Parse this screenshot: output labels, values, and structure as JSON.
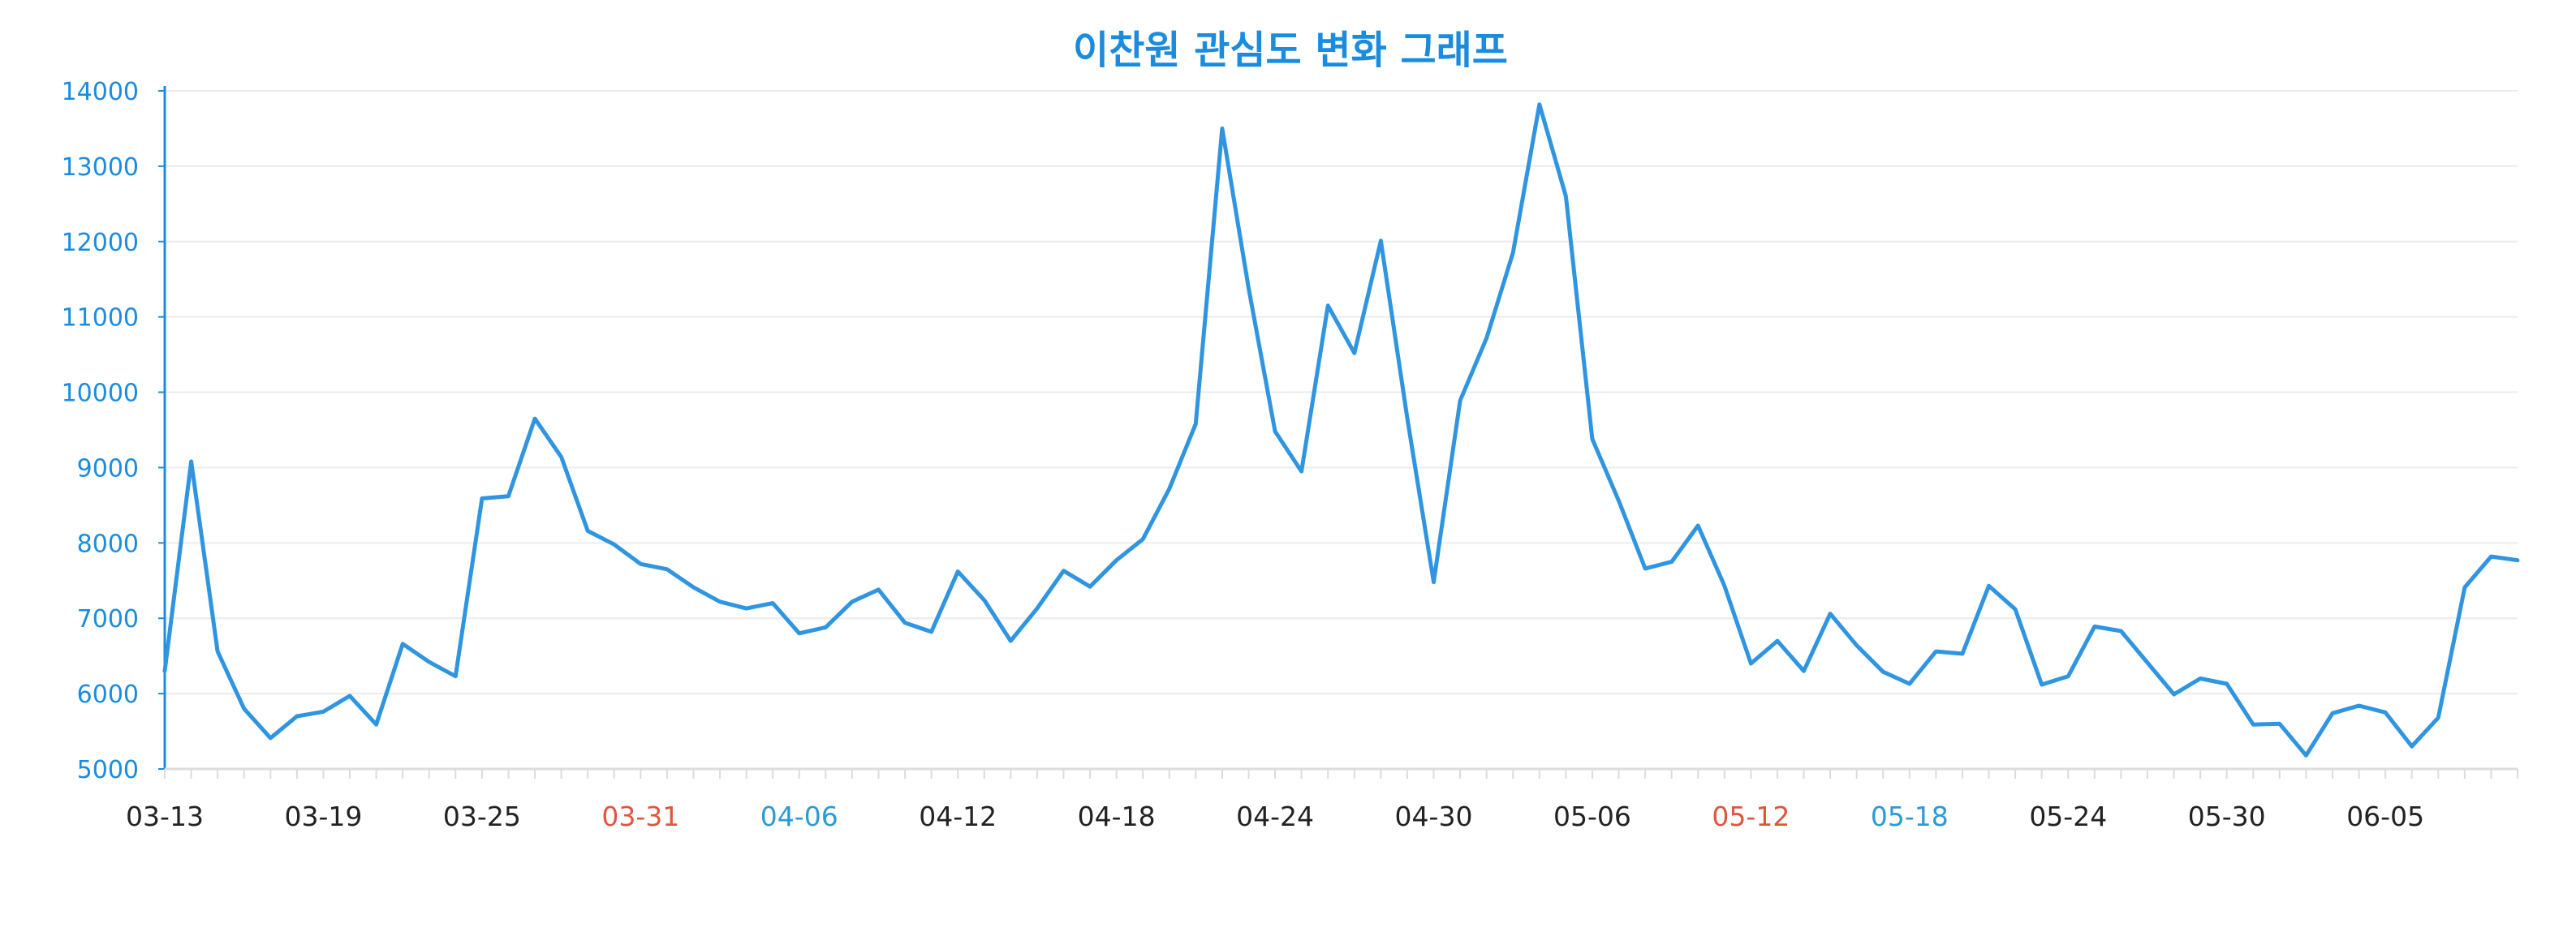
{
  "chart_data": {
    "type": "line",
    "title": "이찬원 관심도 변화 그래프",
    "xlabel": "",
    "ylabel": "",
    "ylim": [
      5000,
      14000
    ],
    "yticks": [
      5000,
      6000,
      7000,
      8000,
      9000,
      10000,
      11000,
      12000,
      13000,
      14000
    ],
    "grid": true,
    "legend": "none",
    "x_tick_labels": [
      {
        "label": "03-13",
        "index": 0,
        "color": "#222222"
      },
      {
        "label": "03-19",
        "index": 6,
        "color": "#222222"
      },
      {
        "label": "03-25",
        "index": 12,
        "color": "#222222"
      },
      {
        "label": "03-31",
        "index": 18,
        "color": "#e0553d"
      },
      {
        "label": "04-06",
        "index": 24,
        "color": "#2b9ad6"
      },
      {
        "label": "04-12",
        "index": 30,
        "color": "#222222"
      },
      {
        "label": "04-18",
        "index": 36,
        "color": "#222222"
      },
      {
        "label": "04-24",
        "index": 42,
        "color": "#222222"
      },
      {
        "label": "04-30",
        "index": 48,
        "color": "#222222"
      },
      {
        "label": "05-06",
        "index": 54,
        "color": "#222222"
      },
      {
        "label": "05-12",
        "index": 60,
        "color": "#e0553d"
      },
      {
        "label": "05-18",
        "index": 66,
        "color": "#2b9ad6"
      },
      {
        "label": "05-24",
        "index": 72,
        "color": "#222222"
      },
      {
        "label": "05-30",
        "index": 78,
        "color": "#222222"
      },
      {
        "label": "06-05",
        "index": 84,
        "color": "#222222"
      }
    ],
    "values": [
      6300,
      9080,
      6560,
      5800,
      5410,
      5700,
      5760,
      5970,
      5590,
      6660,
      6420,
      6230,
      8590,
      8620,
      9650,
      9140,
      8160,
      7980,
      7720,
      7650,
      7410,
      7220,
      7130,
      7200,
      6800,
      6880,
      7220,
      7380,
      6940,
      6820,
      7620,
      7240,
      6700,
      7130,
      7630,
      7420,
      7770,
      8050,
      8720,
      9580,
      13500,
      11380,
      9480,
      8950,
      11150,
      10520,
      12010,
      9660,
      7480,
      9890,
      10720,
      11850,
      13820,
      12600,
      9380,
      8560,
      7660,
      7750,
      8230,
      7430,
      6400,
      6700,
      6300,
      7060,
      6640,
      6290,
      6130,
      6560,
      6530,
      7430,
      7120,
      6120,
      6230,
      6890,
      6830,
      6410,
      5990,
      6200,
      6130,
      5590,
      5600,
      5180,
      5740,
      5840,
      5750,
      5300,
      5680,
      7410,
      7820,
      7770
    ],
    "colors": {
      "line": "#2f95e0",
      "title": "#1a8ce0",
      "ytick": "#1a8ce0",
      "axis": "#1a8ce0",
      "grid": "#ececec",
      "xaxis": "#dcdcdc"
    }
  }
}
